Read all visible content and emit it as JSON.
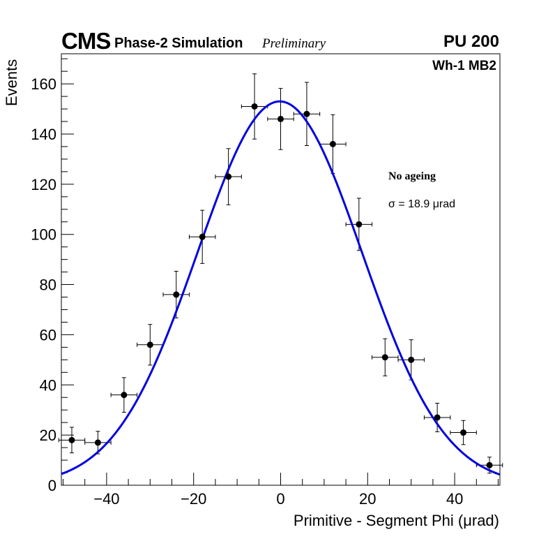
{
  "header": {
    "experiment": "CMS",
    "subtitle": "Phase-2 Simulation",
    "status": "Preliminary",
    "pileup": "PU 200",
    "region": "Wh-1 MB2"
  },
  "annotations": {
    "condition": "No ageing",
    "sigma_text": "σ = 18.9  μrad"
  },
  "colors": {
    "fit": "#0000e0",
    "points": "#000000",
    "background": "#ffffff"
  },
  "chart_data": {
    "type": "scatter",
    "title": "",
    "xlabel": "Primitive - Segment Phi (μrad)",
    "ylabel": "Events",
    "xlim": [
      -50.4,
      50.4
    ],
    "ylim": [
      0,
      172
    ],
    "xticks": [
      -40,
      -20,
      0,
      20,
      40
    ],
    "xtick_labels": [
      "−40",
      "−20",
      "0",
      "20",
      "40"
    ],
    "yticks": [
      0,
      20,
      40,
      60,
      80,
      100,
      120,
      140,
      160
    ],
    "ytick_labels": [
      "0",
      "20",
      "40",
      "60",
      "80",
      "100",
      "120",
      "140",
      "160"
    ],
    "bin_half_width": 3,
    "series": [
      {
        "name": "Simulation",
        "x": [
          -48,
          -42,
          -36,
          -30,
          -24,
          -18,
          -12,
          -6,
          0,
          6,
          12,
          18,
          24,
          30,
          36,
          42,
          48
        ],
        "y": [
          18,
          17,
          36,
          56,
          76,
          99,
          123,
          151,
          146,
          148,
          136,
          104,
          51,
          50,
          27,
          21,
          8
        ],
        "yerr": [
          5.1,
          4.5,
          6.9,
          8.1,
          9.3,
          10.6,
          11.2,
          13.0,
          12.2,
          12.6,
          11.7,
          10.4,
          7.4,
          8.0,
          5.7,
          4.8,
          3.2
        ]
      },
      {
        "name": "Gaussian fit",
        "type": "line",
        "function": "gaussian",
        "amplitude": 153,
        "mean": -0.2,
        "sigma": 18.9
      }
    ]
  }
}
